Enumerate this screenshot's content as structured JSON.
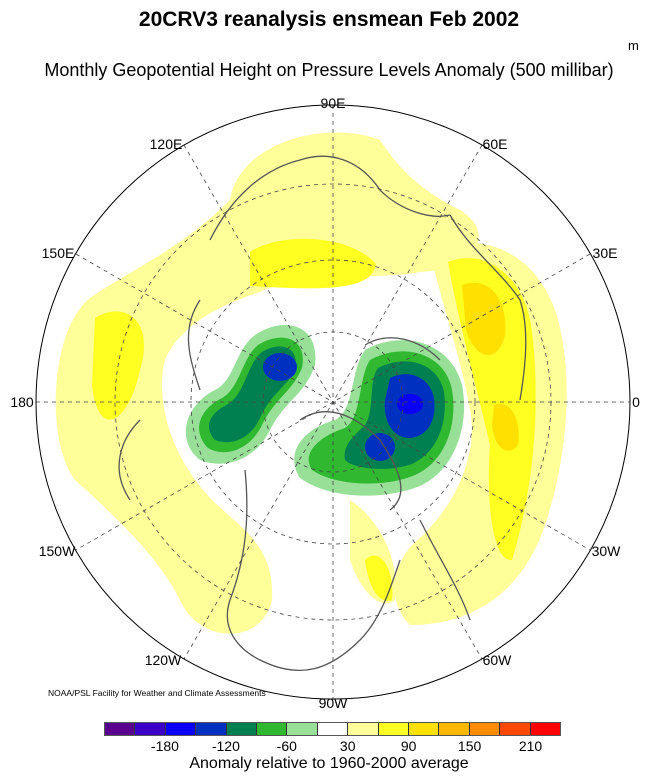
{
  "title": "20CRV3 reanalysis ensmean Feb 2002",
  "subtitle": "Monthly Geopotential Height on Pressure Levels Anomaly (500 millibar)",
  "units": "m",
  "map": {
    "projection": "north polar stereographic",
    "longitude_labels": [
      "90E",
      "60E",
      "30E",
      "0",
      "30W",
      "60W",
      "90W",
      "120W",
      "150W",
      "180",
      "150E",
      "120E"
    ]
  },
  "credit": "NOAA/PSL Facility for Weather and Climate Assessments",
  "colorbar": {
    "colors": [
      "#5a008f",
      "#3a00c8",
      "#0a00f5",
      "#0030c0",
      "#008050",
      "#30b830",
      "#98e098",
      "#ffffff",
      "#ffff99",
      "#ffff22",
      "#ffe000",
      "#ffb800",
      "#ff8c00",
      "#ff4800",
      "#ff0000"
    ],
    "tick_labels": [
      "-180",
      "-120",
      "-60",
      "30",
      "90",
      "150",
      "210"
    ],
    "levels": [
      -210,
      -180,
      -150,
      -120,
      -90,
      -60,
      -30,
      30,
      60,
      90,
      120,
      150,
      180,
      210
    ],
    "title": "Anomaly relative to 1960-2000 average"
  }
}
